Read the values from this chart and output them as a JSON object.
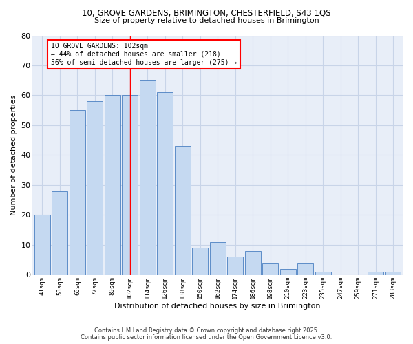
{
  "title_line1": "10, GROVE GARDENS, BRIMINGTON, CHESTERFIELD, S43 1QS",
  "title_line2": "Size of property relative to detached houses in Brimington",
  "xlabel": "Distribution of detached houses by size in Brimington",
  "ylabel": "Number of detached properties",
  "categories": [
    "41sqm",
    "53sqm",
    "65sqm",
    "77sqm",
    "89sqm",
    "102sqm",
    "114sqm",
    "126sqm",
    "138sqm",
    "150sqm",
    "162sqm",
    "174sqm",
    "186sqm",
    "198sqm",
    "210sqm",
    "223sqm",
    "235sqm",
    "247sqm",
    "259sqm",
    "271sqm",
    "283sqm"
  ],
  "values": [
    20,
    28,
    55,
    58,
    60,
    60,
    65,
    61,
    43,
    9,
    11,
    6,
    8,
    4,
    2,
    4,
    1,
    0,
    0,
    1,
    1
  ],
  "bar_color": "#c5d9f1",
  "bar_edge_color": "#4a7fc1",
  "highlight_index": 5,
  "red_line_index": 5,
  "annotation_text": "10 GROVE GARDENS: 102sqm\n← 44% of detached houses are smaller (218)\n56% of semi-detached houses are larger (275) →",
  "annotation_box_color": "white",
  "annotation_box_edge_color": "red",
  "ylim": [
    0,
    80
  ],
  "yticks": [
    0,
    10,
    20,
    30,
    40,
    50,
    60,
    70,
    80
  ],
  "grid_color": "#c8d4e8",
  "background_color": "#e8eef8",
  "footer_line1": "Contains HM Land Registry data © Crown copyright and database right 2025.",
  "footer_line2": "Contains public sector information licensed under the Open Government Licence v3.0."
}
